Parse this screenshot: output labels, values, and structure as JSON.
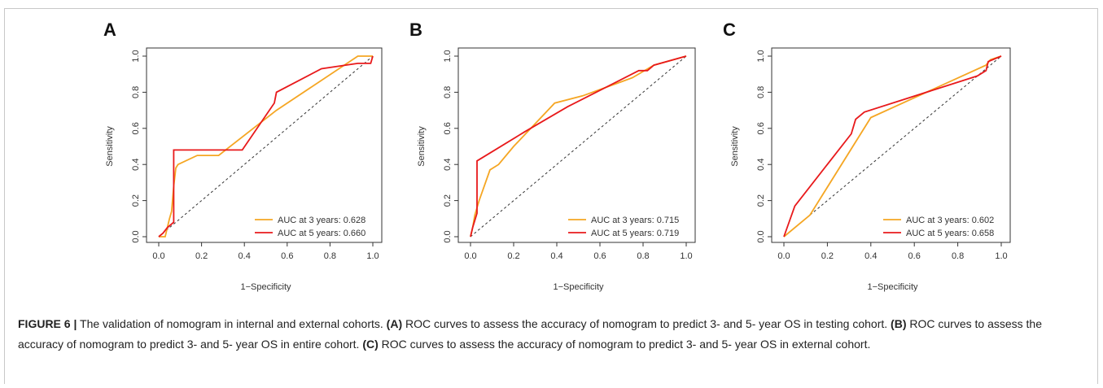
{
  "chart_data": [
    {
      "type": "line",
      "panel": "A",
      "xlabel": "1−Specificity",
      "ylabel": "Sensitivity",
      "xlim": [
        0,
        1
      ],
      "ylim": [
        0,
        1
      ],
      "ticks": [
        "0.0",
        "0.2",
        "0.4",
        "0.6",
        "0.8",
        "1.0"
      ],
      "legend_position": "bottom-right",
      "series": [
        {
          "name": "AUC at 3 years: 0.628",
          "color": "#f5a623",
          "points": [
            [
              0,
              0
            ],
            [
              0.03,
              0
            ],
            [
              0.05,
              0.1
            ],
            [
              0.06,
              0.14
            ],
            [
              0.07,
              0.28
            ],
            [
              0.08,
              0.38
            ],
            [
              0.09,
              0.4
            ],
            [
              0.18,
              0.45
            ],
            [
              0.28,
              0.45
            ],
            [
              0.55,
              0.7
            ],
            [
              0.93,
              1.0
            ],
            [
              1.0,
              1.0
            ]
          ]
        },
        {
          "name": "AUC at 5 years: 0.660",
          "color": "#e8191b",
          "points": [
            [
              0,
              0
            ],
            [
              0.02,
              0.02
            ],
            [
              0.04,
              0.05
            ],
            [
              0.07,
              0.08
            ],
            [
              0.07,
              0.48
            ],
            [
              0.39,
              0.48
            ],
            [
              0.54,
              0.74
            ],
            [
              0.55,
              0.8
            ],
            [
              0.76,
              0.93
            ],
            [
              0.93,
              0.96
            ],
            [
              0.99,
              0.96
            ],
            [
              1.0,
              1.0
            ]
          ]
        }
      ]
    },
    {
      "type": "line",
      "panel": "B",
      "xlabel": "1−Specificity",
      "ylabel": "Sensitivity",
      "xlim": [
        0,
        1
      ],
      "ylim": [
        0,
        1
      ],
      "ticks": [
        "0.0",
        "0.2",
        "0.4",
        "0.6",
        "0.8",
        "1.0"
      ],
      "legend_position": "bottom-right",
      "series": [
        {
          "name": "AUC at 3 years: 0.715",
          "color": "#f5a623",
          "points": [
            [
              0,
              0
            ],
            [
              0.01,
              0.05
            ],
            [
              0.02,
              0.12
            ],
            [
              0.04,
              0.2
            ],
            [
              0.09,
              0.37
            ],
            [
              0.13,
              0.4
            ],
            [
              0.2,
              0.5
            ],
            [
              0.39,
              0.74
            ],
            [
              0.52,
              0.78
            ],
            [
              0.75,
              0.88
            ],
            [
              0.85,
              0.95
            ],
            [
              1.0,
              1.0
            ]
          ]
        },
        {
          "name": "AUC at 5 years: 0.719",
          "color": "#e8191b",
          "points": [
            [
              0,
              0
            ],
            [
              0.01,
              0.05
            ],
            [
              0.03,
              0.13
            ],
            [
              0.03,
              0.42
            ],
            [
              0.25,
              0.58
            ],
            [
              0.45,
              0.72
            ],
            [
              0.78,
              0.92
            ],
            [
              0.82,
              0.92
            ],
            [
              0.85,
              0.95
            ],
            [
              1.0,
              1.0
            ]
          ]
        }
      ]
    },
    {
      "type": "line",
      "panel": "C",
      "xlabel": "1−Specificity",
      "ylabel": "Sensitivity",
      "xlim": [
        0,
        1
      ],
      "ylim": [
        0,
        1
      ],
      "ticks": [
        "0.0",
        "0.2",
        "0.4",
        "0.6",
        "0.8",
        "1.0"
      ],
      "legend_position": "bottom-right",
      "series": [
        {
          "name": "AUC at 3 years: 0.602",
          "color": "#f5a623",
          "points": [
            [
              0,
              0
            ],
            [
              0.12,
              0.12
            ],
            [
              0.4,
              0.66
            ],
            [
              0.93,
              0.95
            ],
            [
              0.95,
              0.98
            ],
            [
              1.0,
              1.0
            ]
          ]
        },
        {
          "name": "AUC at 5 years: 0.658",
          "color": "#e8191b",
          "points": [
            [
              0,
              0
            ],
            [
              0.05,
              0.17
            ],
            [
              0.31,
              0.57
            ],
            [
              0.33,
              0.65
            ],
            [
              0.37,
              0.69
            ],
            [
              0.89,
              0.89
            ],
            [
              0.93,
              0.92
            ],
            [
              0.94,
              0.97
            ],
            [
              1.0,
              1.0
            ]
          ]
        }
      ]
    }
  ],
  "caption": {
    "label": "FIGURE 6 |",
    "intro": " The validation of nomogram in internal and external cohorts. ",
    "parts": [
      {
        "tag": "(A)",
        "text": " ROC curves to assess the accuracy of nomogram to predict 3- and 5- year OS in testing cohort. "
      },
      {
        "tag": "(B)",
        "text": " ROC curves to assess the accuracy of nomogram to predict 3- and 5- year OS in entire cohort. "
      },
      {
        "tag": "(C)",
        "text": " ROC curves to assess the accuracy of nomogram to predict 3- and 5- year OS in external cohort."
      }
    ]
  }
}
